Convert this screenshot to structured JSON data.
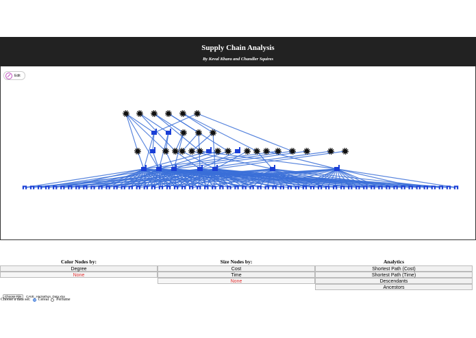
{
  "header": {
    "title": "Supply Chain Analysis",
    "subtitle": "By Keval Khara and Chandler Squires"
  },
  "toolbar": {
    "edit_label": "Edit"
  },
  "graph": {
    "colors": {
      "edge": "#3a6fd8",
      "node": "#1a3fd6",
      "supplier": "#111111"
    }
  },
  "panels": {
    "color": {
      "heading": "Color Nodes by:",
      "options": [
        "Degree",
        "None"
      ],
      "selected": "None"
    },
    "size": {
      "heading": "Size Nodes by:",
      "options": [
        "Cost",
        "Time",
        "None"
      ],
      "selected": "None"
    },
    "analytics": {
      "heading": "Analytics",
      "options": [
        "Shortest Path (Cost)",
        "Shortest Path (Time)",
        "Descendants",
        "Ancestors"
      ]
    }
  },
  "file": {
    "button_label": "Choose File",
    "file_name": "CAVE_Hackathon_Data.xlsx"
  },
  "dataset": {
    "label": "Choose a data set:",
    "options": [
      "Cereal",
      "Perfume"
    ],
    "selected": "Cereal"
  }
}
